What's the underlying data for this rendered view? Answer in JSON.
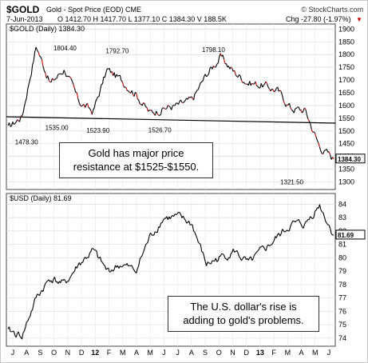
{
  "header": {
    "symbol": "$GOLD",
    "name": "Gold - Spot Price (EOD) CME",
    "brand": "© StockCharts.com",
    "date": "7-Jun-2013",
    "ohlc": "O 1412.70  H 1417.70  L 1377.10  C 1384.30  V 188.5K",
    "chg": "Chg -27.80 (-1.97%)",
    "chg_color": "#cc0000",
    "chg_arrow": "▼"
  },
  "annotations": {
    "gold": [
      "Gold has major price",
      "resistance at $1525-$1550."
    ],
    "usd": [
      "The U.S. dollar's rise is",
      "adding to gold's problems."
    ]
  },
  "chart_data": [
    {
      "type": "line",
      "title": "$GOLD (Daily) 1384.30",
      "x": [
        "J",
        "A",
        "S",
        "O",
        "N",
        "D",
        "12",
        "F",
        "M",
        "A",
        "M",
        "J",
        "J",
        "A",
        "S",
        "O",
        "N",
        "D",
        "13",
        "F",
        "M",
        "A",
        "M",
        "J"
      ],
      "y": [
        1510,
        1560,
        1835,
        1685,
        1745,
        1615,
        1575,
        1740,
        1700,
        1650,
        1570,
        1590,
        1600,
        1620,
        1720,
        1790,
        1730,
        1690,
        1680,
        1660,
        1590,
        1580,
        1440,
        1390
      ],
      "ylim": [
        1270,
        1920
      ],
      "yticks": [
        1300,
        1350,
        1400,
        1450,
        1500,
        1550,
        1600,
        1650,
        1700,
        1750,
        1800,
        1850,
        1900
      ],
      "last_value": "1384.30",
      "annotations": [
        "1478.30",
        "1535.00",
        "1804.40",
        "1523.90",
        "1792.70",
        "1526.70",
        "1798.10",
        "1321.50"
      ],
      "resistance_line": 1540,
      "colors": {
        "line": "#000000",
        "down": "#cc0000",
        "resistance": "#000000"
      },
      "grid": true
    },
    {
      "type": "line",
      "title": "$USD (Daily) 81.69",
      "x": [
        "J",
        "A",
        "S",
        "O",
        "N",
        "D",
        "12",
        "F",
        "M",
        "A",
        "M",
        "J",
        "J",
        "A",
        "S",
        "O",
        "N",
        "D",
        "13",
        "F",
        "M",
        "A",
        "M",
        "J"
      ],
      "y": [
        74.5,
        74.2,
        77.0,
        78.5,
        78.0,
        79.5,
        80.5,
        79.0,
        79.5,
        79.0,
        81.5,
        83.0,
        83.0,
        82.5,
        79.5,
        80.0,
        80.5,
        79.5,
        80.5,
        81.5,
        82.5,
        82.5,
        84.0,
        81.7
      ],
      "ylim": [
        73.4,
        84.8
      ],
      "yticks": [
        74,
        75,
        76,
        77,
        78,
        79,
        80,
        81,
        82,
        83,
        84
      ],
      "last_value": "81.69",
      "colors": {
        "line": "#000000"
      },
      "grid": true
    }
  ]
}
